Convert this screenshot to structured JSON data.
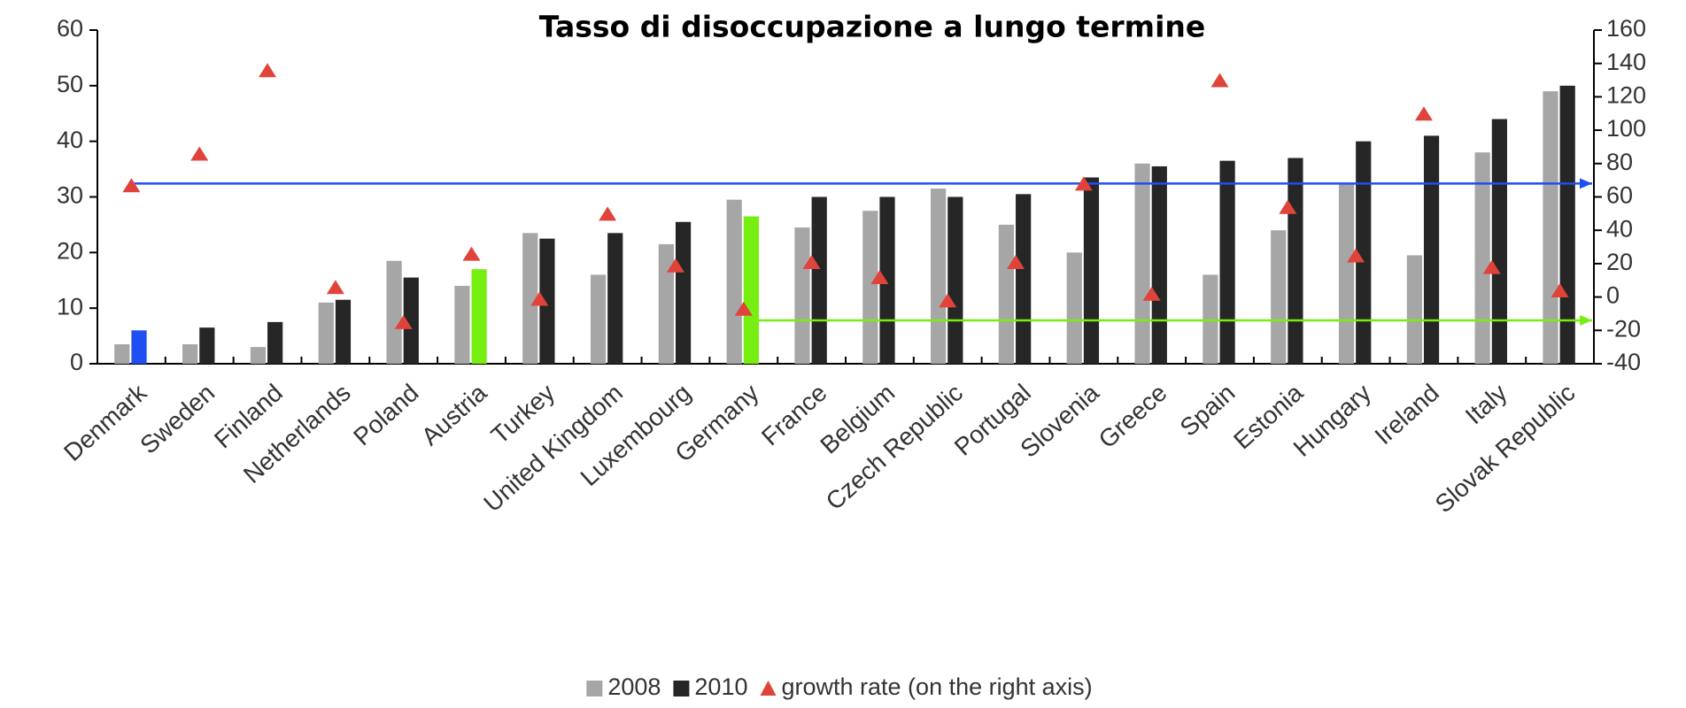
{
  "chart_data": {
    "type": "bar",
    "title": "Tasso di disoccupazione a lungo termine",
    "categories": [
      "Denmark",
      "Sweden",
      "Finland",
      "Netherlands",
      "Poland",
      "Austria",
      "Turkey",
      "United Kingdom",
      "Luxembourg",
      "Germany",
      "France",
      "Belgium",
      "Czech Republic",
      "Portugal",
      "Slovenia",
      "Greece",
      "Spain",
      "Estonia",
      "Hungary",
      "Ireland",
      "Italy",
      "Slovak Republic"
    ],
    "series": [
      {
        "name": "2008",
        "color": "#a6a6a6",
        "values": [
          3.5,
          3.5,
          3,
          11,
          18.5,
          14,
          23.5,
          16,
          21.5,
          29.5,
          24.5,
          27.5,
          31.5,
          25,
          20,
          36,
          16,
          24,
          32.5,
          19.5,
          38,
          49
        ]
      },
      {
        "name": "2010",
        "color": "#262626",
        "point_colors": [
          "#1f4ff0",
          "#262626",
          "#262626",
          "#262626",
          "#262626",
          "#77ee11",
          "#262626",
          "#262626",
          "#262626",
          "#77ee11",
          "#262626",
          "#262626",
          "#262626",
          "#262626",
          "#262626",
          "#262626",
          "#262626",
          "#262626",
          "#262626",
          "#262626",
          "#262626",
          "#262626"
        ],
        "values": [
          6,
          6.5,
          7.5,
          11.5,
          15.5,
          17,
          22.5,
          23.5,
          25.5,
          26.5,
          30,
          30,
          30,
          30.5,
          33.5,
          35.5,
          36.5,
          37,
          40,
          41,
          44,
          50
        ]
      },
      {
        "name": "growth rate (on the right axis)",
        "color": "#e0433a",
        "axis": "y2",
        "marker": "triangle",
        "values": [
          67,
          86,
          136,
          6,
          -15,
          26,
          -1,
          50,
          19,
          -7,
          21,
          12,
          -2,
          21,
          68,
          2,
          130,
          54,
          25,
          110,
          18,
          4
        ]
      }
    ],
    "reference_lines": [
      {
        "value": 68,
        "axis": "y2",
        "color": "#1f4ff0"
      },
      {
        "value": -14,
        "axis": "y2",
        "color": "#77ee11"
      }
    ],
    "ylim": [
      0,
      60
    ],
    "yticks": [
      0,
      10,
      20,
      30,
      40,
      50,
      60
    ],
    "y2lim": [
      -40,
      160
    ],
    "y2ticks": [
      -40,
      -20,
      0,
      20,
      40,
      60,
      80,
      100,
      120,
      140,
      160
    ],
    "legend": "bottom"
  }
}
